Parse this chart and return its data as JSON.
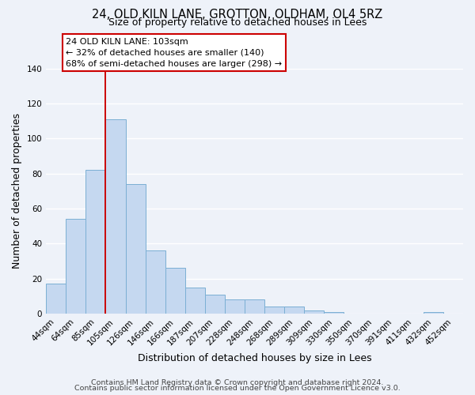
{
  "title": "24, OLD KILN LANE, GROTTON, OLDHAM, OL4 5RZ",
  "subtitle": "Size of property relative to detached houses in Lees",
  "xlabel": "Distribution of detached houses by size in Lees",
  "ylabel": "Number of detached properties",
  "footer_line1": "Contains HM Land Registry data © Crown copyright and database right 2024.",
  "footer_line2": "Contains public sector information licensed under the Open Government Licence v3.0.",
  "bin_labels": [
    "44sqm",
    "64sqm",
    "85sqm",
    "105sqm",
    "126sqm",
    "146sqm",
    "166sqm",
    "187sqm",
    "207sqm",
    "228sqm",
    "248sqm",
    "268sqm",
    "289sqm",
    "309sqm",
    "330sqm",
    "350sqm",
    "370sqm",
    "391sqm",
    "411sqm",
    "432sqm",
    "452sqm"
  ],
  "bar_values": [
    17,
    54,
    82,
    111,
    74,
    36,
    26,
    15,
    11,
    8,
    8,
    4,
    4,
    2,
    1,
    0,
    0,
    0,
    0,
    1,
    0
  ],
  "bar_color": "#c5d8f0",
  "bar_edge_color": "#7bafd4",
  "vline_bar_index": 3,
  "vline_color": "#cc0000",
  "ylim": [
    0,
    140
  ],
  "yticks": [
    0,
    20,
    40,
    60,
    80,
    100,
    120,
    140
  ],
  "annotation_title": "24 OLD KILN LANE: 103sqm",
  "annotation_line1": "← 32% of detached houses are smaller (140)",
  "annotation_line2": "68% of semi-detached houses are larger (298) →",
  "annotation_box_facecolor": "#ffffff",
  "annotation_box_edgecolor": "#cc0000",
  "bg_color": "#eef2f9",
  "plot_bg_color": "#eef2f9",
  "grid_color": "#ffffff",
  "title_fontsize": 10.5,
  "subtitle_fontsize": 9,
  "axis_label_fontsize": 9,
  "tick_fontsize": 7.5,
  "footer_fontsize": 6.8
}
